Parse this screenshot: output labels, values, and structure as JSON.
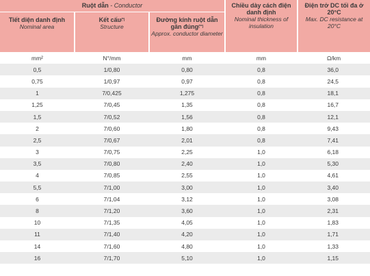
{
  "header": {
    "conductor_group_vi": "Ruột dẫn",
    "conductor_group_sep": " - ",
    "conductor_group_en": "Conductor",
    "col1_vi": "Tiết diện danh định",
    "col1_en": "Nominal area",
    "col2_vi": "Kết cấu",
    "col2_sup": "(*)",
    "col2_en": "Structure",
    "col3_vi": "Đường kính ruột dẫn gần đúng",
    "col3_sup": "(**)",
    "col3_en": "Approx. conductor diameter",
    "col4_vi": "Chiều dày cách điện danh định",
    "col4_en": "Nominal thickness of insulation",
    "col5_vi": "Điện trở DC tối đa ở 20°C",
    "col5_en": "Max. DC resistance at 20°C"
  },
  "units": [
    "mm²",
    "N°/mm",
    "mm",
    "mm",
    "Ω/km"
  ],
  "rows": [
    [
      "0,5",
      "1/0,80",
      "0,80",
      "0,8",
      "36,0"
    ],
    [
      "0,75",
      "1/0,97",
      "0,97",
      "0,8",
      "24,5"
    ],
    [
      "1",
      "7/0,425",
      "1,275",
      "0,8",
      "18,1"
    ],
    [
      "1,25",
      "7/0,45",
      "1,35",
      "0,8",
      "16,7"
    ],
    [
      "1,5",
      "7/0,52",
      "1,56",
      "0,8",
      "12,1"
    ],
    [
      "2",
      "7/0,60",
      "1,80",
      "0,8",
      "9,43"
    ],
    [
      "2,5",
      "7/0,67",
      "2,01",
      "0,8",
      "7,41"
    ],
    [
      "3",
      "7/0,75",
      "2,25",
      "1,0",
      "6,18"
    ],
    [
      "3,5",
      "7/0,80",
      "2,40",
      "1,0",
      "5,30"
    ],
    [
      "4",
      "7/0,85",
      "2,55",
      "1,0",
      "4,61"
    ],
    [
      "5,5",
      "7/1,00",
      "3,00",
      "1,0",
      "3,40"
    ],
    [
      "6",
      "7/1,04",
      "3,12",
      "1,0",
      "3,08"
    ],
    [
      "8",
      "7/1,20",
      "3,60",
      "1,0",
      "2,31"
    ],
    [
      "10",
      "7/1,35",
      "4,05",
      "1,0",
      "1,83"
    ],
    [
      "11",
      "7/1,40",
      "4,20",
      "1,0",
      "1,71"
    ],
    [
      "14",
      "7/1,60",
      "4,80",
      "1,0",
      "1,33"
    ],
    [
      "16",
      "7/1,70",
      "5,10",
      "1,0",
      "1,15"
    ]
  ]
}
